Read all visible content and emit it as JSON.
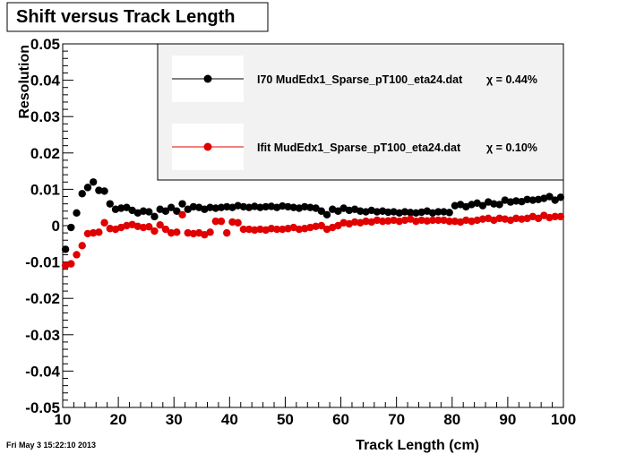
{
  "footer": {
    "timestamp": "Fri May  3 15:22:10 2013"
  },
  "chart_data": {
    "type": "scatter",
    "title": "Shift versus Track Length",
    "xlabel": "Track Length (cm)",
    "ylabel": "Resolution",
    "xlim": [
      10,
      100
    ],
    "ylim": [
      -0.05,
      0.05
    ],
    "x_ticks": [
      10,
      20,
      30,
      40,
      50,
      60,
      70,
      80,
      90,
      100
    ],
    "x_tick_labels": [
      "10",
      "20",
      "30",
      "40",
      "50",
      "60",
      "70",
      "80",
      "90",
      "100"
    ],
    "y_ticks": [
      -0.05,
      -0.04,
      -0.03,
      -0.02,
      -0.01,
      0,
      0.01,
      0.02,
      0.03,
      0.04,
      0.05
    ],
    "y_tick_labels": [
      "-0.05",
      "-0.04",
      "-0.03",
      "-0.02",
      "-0.01",
      "0",
      "0.01",
      "0.02",
      "0.03",
      "0.04",
      "0.05"
    ],
    "grid": false,
    "legend_position": "top-right",
    "series": [
      {
        "name": "I70   MudEdx1_Sparse_pT100_eta24.dat",
        "legend_label": "I70   MudEdx1_Sparse_pT100_eta24.dat",
        "legend_value": "χ =  0.44%",
        "color": "#000000",
        "x": [
          10.5,
          11.5,
          12.5,
          13.5,
          14.5,
          15.5,
          16.5,
          17.5,
          18.5,
          19.5,
          20.5,
          21.5,
          22.5,
          23.5,
          24.5,
          25.5,
          26.5,
          27.5,
          28.5,
          29.5,
          30.5,
          31.5,
          32.5,
          33.5,
          34.5,
          35.5,
          36.5,
          37.5,
          38.5,
          39.5,
          40.5,
          41.5,
          42.5,
          43.5,
          44.5,
          45.5,
          46.5,
          47.5,
          48.5,
          49.5,
          50.5,
          51.5,
          52.5,
          53.5,
          54.5,
          55.5,
          56.5,
          57.5,
          58.5,
          59.5,
          60.5,
          61.5,
          62.5,
          63.5,
          64.5,
          65.5,
          66.5,
          67.5,
          68.5,
          69.5,
          70.5,
          71.5,
          72.5,
          73.5,
          74.5,
          75.5,
          76.5,
          77.5,
          78.5,
          79.5,
          80.5,
          81.5,
          82.5,
          83.5,
          84.5,
          85.5,
          86.5,
          87.5,
          88.5,
          89.5,
          90.5,
          91.5,
          92.5,
          93.5,
          94.5,
          95.5,
          96.5,
          97.5,
          98.5,
          99.5
        ],
        "y": [
          -0.0065,
          -0.0005,
          0.0035,
          0.0088,
          0.0105,
          0.012,
          0.0097,
          0.0095,
          0.006,
          0.0045,
          0.0048,
          0.005,
          0.0042,
          0.0035,
          0.004,
          0.0038,
          0.0025,
          0.0045,
          0.004,
          0.005,
          0.004,
          0.006,
          0.0045,
          0.0052,
          0.005,
          0.0045,
          0.005,
          0.0048,
          0.005,
          0.0052,
          0.005,
          0.0055,
          0.0052,
          0.005,
          0.0053,
          0.005,
          0.0052,
          0.0053,
          0.005,
          0.0054,
          0.0052,
          0.005,
          0.0048,
          0.0052,
          0.005,
          0.0048,
          0.004,
          0.003,
          0.0045,
          0.004,
          0.0048,
          0.0042,
          0.0045,
          0.004,
          0.0038,
          0.0042,
          0.0038,
          0.004,
          0.0037,
          0.0038,
          0.0035,
          0.0038,
          0.0036,
          0.0035,
          0.0037,
          0.004,
          0.0035,
          0.0038,
          0.0038,
          0.0036,
          0.0055,
          0.0058,
          0.0052,
          0.0058,
          0.0062,
          0.0055,
          0.0065,
          0.006,
          0.0058,
          0.007,
          0.0065,
          0.0068,
          0.0066,
          0.0072,
          0.007,
          0.0072,
          0.0075,
          0.008,
          0.007,
          0.0078
        ]
      },
      {
        "name": "Ifit  MudEdx1_Sparse_pT100_eta24.dat",
        "legend_label": "Ifit  MudEdx1_Sparse_pT100_eta24.dat",
        "legend_value": "χ =  0.10%",
        "color": "#e00000",
        "x": [
          10.5,
          11.5,
          12.5,
          13.5,
          14.5,
          15.5,
          16.5,
          17.5,
          18.5,
          19.5,
          20.5,
          21.5,
          22.5,
          23.5,
          24.5,
          25.5,
          26.5,
          27.5,
          28.5,
          29.5,
          30.5,
          31.5,
          32.5,
          33.5,
          34.5,
          35.5,
          36.5,
          37.5,
          38.5,
          39.5,
          40.5,
          41.5,
          42.5,
          43.5,
          44.5,
          45.5,
          46.5,
          47.5,
          48.5,
          49.5,
          50.5,
          51.5,
          52.5,
          53.5,
          54.5,
          55.5,
          56.5,
          57.5,
          58.5,
          59.5,
          60.5,
          61.5,
          62.5,
          63.5,
          64.5,
          65.5,
          66.5,
          67.5,
          68.5,
          69.5,
          70.5,
          71.5,
          72.5,
          73.5,
          74.5,
          75.5,
          76.5,
          77.5,
          78.5,
          79.5,
          80.5,
          81.5,
          82.5,
          83.5,
          84.5,
          85.5,
          86.5,
          87.5,
          88.5,
          89.5,
          90.5,
          91.5,
          92.5,
          93.5,
          94.5,
          95.5,
          96.5,
          97.5,
          98.5,
          99.5
        ],
        "y": [
          -0.011,
          -0.0105,
          -0.008,
          -0.0055,
          -0.0022,
          -0.002,
          -0.0018,
          0.0008,
          -0.0008,
          -0.001,
          -0.0005,
          0.0,
          0.0003,
          -0.0002,
          -0.0005,
          -0.0003,
          -0.0015,
          0.0002,
          -0.001,
          -0.002,
          -0.0018,
          0.003,
          -0.002,
          -0.0022,
          -0.002,
          -0.0025,
          -0.0018,
          0.0012,
          0.0012,
          -0.002,
          0.001,
          0.0008,
          -0.001,
          -0.001,
          -0.0012,
          -0.001,
          -0.0012,
          -0.0008,
          -0.001,
          -0.001,
          -0.0008,
          -0.0005,
          -0.001,
          -0.0008,
          -0.0005,
          -0.0002,
          0.0,
          -0.001,
          -0.0005,
          0.0,
          0.0008,
          0.0005,
          0.001,
          0.0008,
          0.0012,
          0.001,
          0.0015,
          0.0012,
          0.0013,
          0.0015,
          0.0012,
          0.0015,
          0.0018,
          0.0012,
          0.0015,
          0.0013,
          0.0015,
          0.0015,
          0.0015,
          0.0012,
          0.0012,
          0.001,
          0.0015,
          0.0012,
          0.0015,
          0.0018,
          0.002,
          0.0015,
          0.002,
          0.0018,
          0.0015,
          0.002,
          0.0018,
          0.002,
          0.0025,
          0.002,
          0.0028,
          0.0022,
          0.0025,
          0.0025
        ]
      }
    ]
  }
}
